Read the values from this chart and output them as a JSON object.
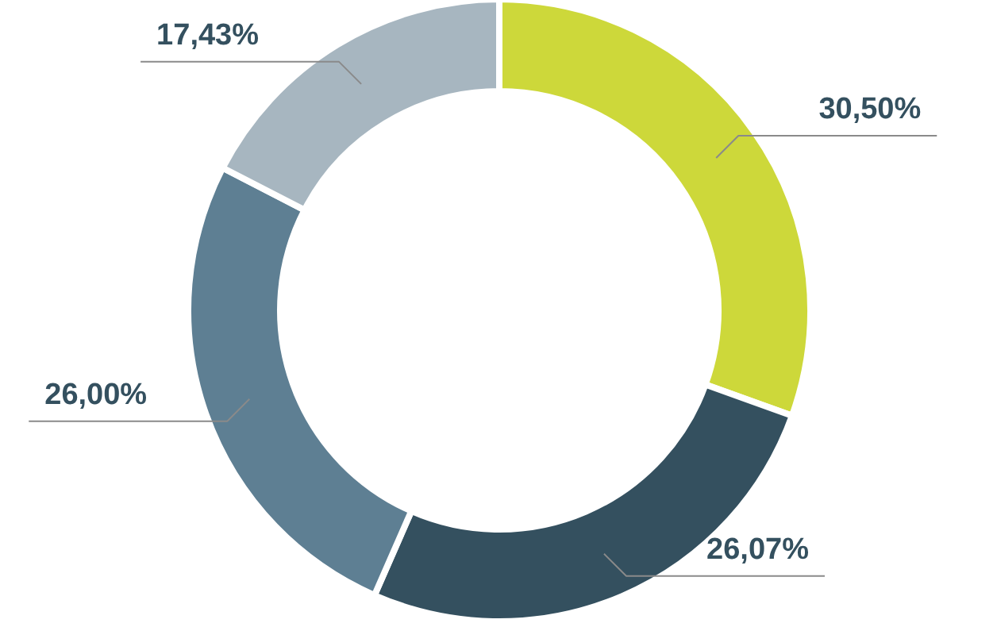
{
  "chart_data": {
    "type": "donut",
    "categories": [
      null,
      null,
      null,
      null
    ],
    "values": [
      30.5,
      26.07,
      26.0,
      17.43
    ],
    "colors": [
      "#cdd83a",
      "#34505f",
      "#5e7f93",
      "#a7b6c0"
    ],
    "value_labels": [
      "30,50%",
      "26,07%",
      "26,00%",
      "17,43%"
    ]
  }
}
